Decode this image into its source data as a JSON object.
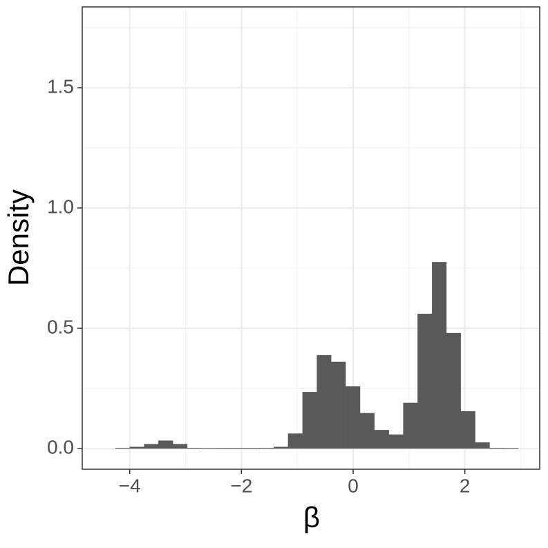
{
  "chart_data": {
    "type": "histogram",
    "xlabel": "β",
    "ylabel": "Density",
    "bins": [
      -4.257,
      -3.999,
      -3.742,
      -3.484,
      -3.226,
      -2.969,
      -2.711,
      -2.453,
      -2.196,
      -1.938,
      -1.68,
      -1.422,
      -1.165,
      -0.907,
      -0.649,
      -0.392,
      -0.134,
      0.124,
      0.382,
      0.639,
      0.897,
      1.155,
      1.412,
      1.67,
      1.928,
      2.186,
      2.443,
      2.701,
      2.958
    ],
    "values": [
      0.002,
      0.007,
      0.018,
      0.033,
      0.018,
      0.002,
      0.001,
      0.0005,
      0.0005,
      0.0005,
      0.002,
      0.007,
      0.062,
      0.235,
      0.388,
      0.36,
      0.258,
      0.147,
      0.077,
      0.058,
      0.19,
      0.56,
      0.775,
      0.48,
      0.155,
      0.025,
      0.002,
      0.001
    ],
    "color": "#595959",
    "xlim": [
      -4.85,
      3.34
    ],
    "ylim": [
      -0.086,
      1.836
    ],
    "xticks": [
      {
        "value": -4,
        "label": "−4"
      },
      {
        "value": -2,
        "label": "−2"
      },
      0,
      2
    ],
    "yticks": [
      {
        "value": 0,
        "label": "0.0"
      },
      0.5,
      {
        "value": 1,
        "label": "1.0"
      },
      1.5
    ],
    "xminorticks": [
      -3,
      -1,
      1,
      3
    ],
    "yminorticks": [
      0.25,
      0.75,
      1.25,
      1.75
    ],
    "grid": true
  }
}
